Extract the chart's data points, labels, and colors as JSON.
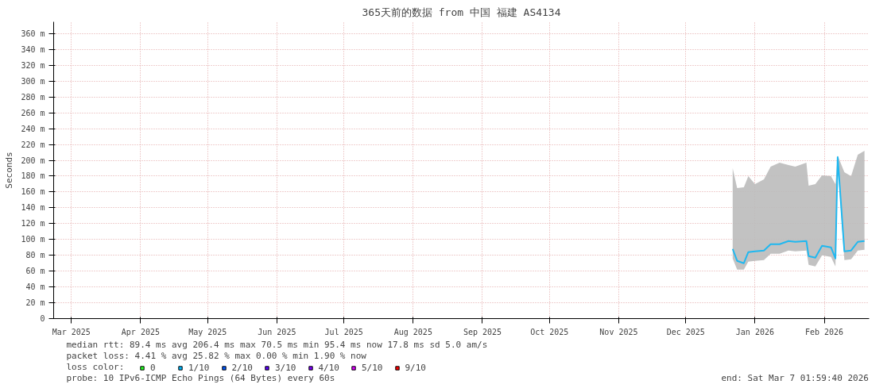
{
  "chart_data": {
    "type": "line",
    "title": "365天前的数据 from 中国 福建 AS4134",
    "ylabel": "Seconds",
    "x": [
      "2026-01-05",
      "2026-01-07",
      "2026-01-10",
      "2026-01-12",
      "2026-01-15",
      "2026-01-19",
      "2026-01-22",
      "2026-01-26",
      "2026-01-30",
      "2026-02-02",
      "2026-02-07",
      "2026-02-08",
      "2026-02-11",
      "2026-02-14",
      "2026-02-18",
      "2026-02-20",
      "2026-02-21",
      "2026-02-24",
      "2026-02-27",
      "2026-03-02",
      "2026-03-05"
    ],
    "series": [
      {
        "color": "#1fb8f0",
        "values": [
          88,
          73,
          70,
          84,
          85,
          86,
          94,
          94,
          98,
          97,
          98,
          79,
          77,
          92,
          90,
          76,
          204,
          85,
          86,
          97,
          98
        ],
        "lower": [
          76,
          62,
          62,
          72,
          73,
          74,
          82,
          82,
          86,
          85,
          86,
          68,
          66,
          80,
          78,
          66,
          195,
          74,
          75,
          86,
          87
        ],
        "upper": [
          190,
          165,
          166,
          180,
          170,
          176,
          192,
          197,
          194,
          192,
          197,
          168,
          170,
          181,
          180,
          170,
          206,
          185,
          180,
          207,
          212
        ]
      },
      {
        "type": "scatter",
        "marker": "square",
        "name": "0",
        "color": "#26ff26",
        "values": [
          null,
          null,
          null,
          null,
          null,
          null,
          null,
          null,
          null,
          null,
          null,
          null,
          null,
          null,
          null,
          null,
          null,
          null,
          null,
          null,
          null
        ]
      },
      {
        "type": "scatter",
        "marker": "square",
        "name": "1/10",
        "color": "#00b8ff",
        "values": [
          null,
          null,
          null,
          null,
          null,
          null,
          null,
          null,
          null,
          null,
          null,
          null,
          null,
          null,
          null,
          null,
          null,
          null,
          null,
          null,
          null
        ]
      },
      {
        "type": "scatter",
        "marker": "square",
        "name": "2/10",
        "color": "#0059ff",
        "values": [
          null,
          null,
          null,
          null,
          null,
          null,
          null,
          null,
          null,
          null,
          null,
          null,
          null,
          null,
          null,
          null,
          null,
          null,
          null,
          null,
          null
        ]
      },
      {
        "type": "scatter",
        "marker": "square",
        "name": "3/10",
        "color": "#5e00ff",
        "values": [
          null,
          null,
          null,
          null,
          null,
          null,
          null,
          null,
          null,
          null,
          null,
          null,
          null,
          null,
          null,
          null,
          null,
          null,
          null,
          null,
          null
        ]
      },
      {
        "type": "scatter",
        "marker": "square",
        "name": "4/10",
        "color": "#7e00ff",
        "values": [
          null,
          null,
          null,
          null,
          null,
          null,
          null,
          null,
          null,
          null,
          null,
          null,
          null,
          null,
          null,
          null,
          null,
          null,
          null,
          null,
          null
        ]
      },
      {
        "type": "scatter",
        "marker": "square",
        "name": "5/10",
        "color": "#dd00ff",
        "values": [
          null,
          null,
          null,
          null,
          null,
          null,
          null,
          null,
          null,
          null,
          null,
          null,
          null,
          null,
          null,
          null,
          null,
          null,
          null,
          null,
          null
        ]
      },
      {
        "type": "scatter",
        "marker": "square",
        "name": "9/10",
        "color": "#ff0000",
        "values": [
          null,
          null,
          null,
          null,
          null,
          null,
          null,
          null,
          null,
          null,
          null,
          null,
          null,
          null,
          null,
          null,
          null,
          null,
          null,
          null,
          null
        ]
      }
    ],
    "legend_title": "loss color:",
    "legend": "bottom",
    "grid": true,
    "xlim": [
      "2025-03-07T02:00",
      "2026-03-07T02:00"
    ],
    "xticks": [
      {
        "value": "2025-03-15",
        "label": "Mar 2025"
      },
      {
        "value": "2025-04-15",
        "label": "Apr 2025"
      },
      {
        "value": "2025-05-15",
        "label": "May 2025"
      },
      {
        "value": "2025-06-15",
        "label": "Jun 2025"
      },
      {
        "value": "2025-07-15",
        "label": "Jul 2025"
      },
      {
        "value": "2025-08-15",
        "label": "Aug 2025"
      },
      {
        "value": "2025-09-15",
        "label": "Sep 2025"
      },
      {
        "value": "2025-10-15",
        "label": "Oct 2025"
      },
      {
        "value": "2025-11-15",
        "label": "Nov 2025"
      },
      {
        "value": "2025-12-15",
        "label": "Dec 2025"
      },
      {
        "value": "2026-01-15",
        "label": "Jan 2026"
      },
      {
        "value": "2026-02-15",
        "label": "Feb 2026"
      }
    ],
    "ylim": [
      0,
      375
    ],
    "yticks": [
      0,
      {
        "value": 20,
        "label": "20 m"
      },
      {
        "value": 40,
        "label": "40 m"
      },
      {
        "value": 60,
        "label": "60 m"
      },
      {
        "value": 80,
        "label": "80 m"
      },
      {
        "value": 100,
        "label": "100 m"
      },
      {
        "value": 120,
        "label": "120 m"
      },
      {
        "value": 140,
        "label": "140 m"
      },
      {
        "value": 160,
        "label": "160 m"
      },
      {
        "value": 180,
        "label": "180 m"
      },
      {
        "value": 200,
        "label": "200 m"
      },
      {
        "value": 220,
        "label": "220 m"
      },
      {
        "value": 240,
        "label": "240 m"
      },
      {
        "value": 260,
        "label": "260 m"
      },
      {
        "value": 280,
        "label": "280 m"
      },
      {
        "value": 300,
        "label": "300 m"
      },
      {
        "value": 320,
        "label": "320 m"
      },
      {
        "value": 340,
        "label": "340 m"
      },
      {
        "value": 360,
        "label": "360 m"
      }
    ],
    "annotations": [
      "median rtt:  89.4 ms avg  206.4 ms max  70.5 ms min  95.4 ms now  17.8 ms sd  5.0   am/s",
      "packet loss: 4.41 % avg  25.82 % max  0.00 % min  1.90 % now",
      "probe:       10 IPv6-ICMP Echo Pings (64 Bytes) every 60s",
      "end: Sat Mar  7 01:59:40 2026"
    ]
  }
}
